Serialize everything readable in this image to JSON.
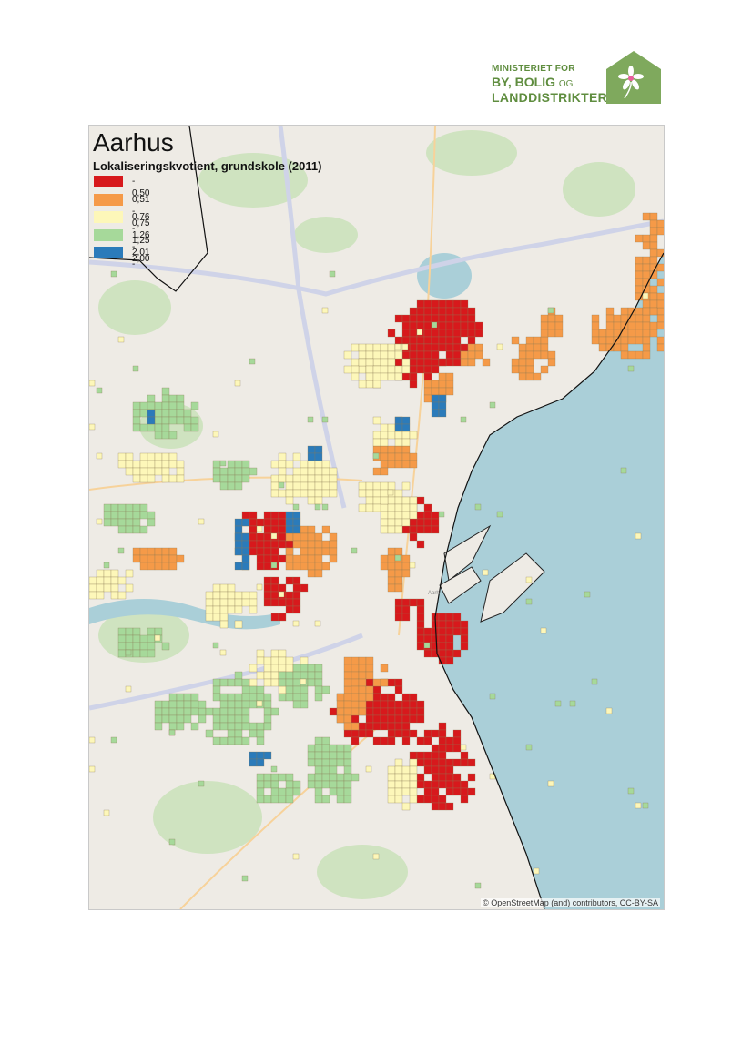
{
  "logo": {
    "line1": "MINISTERIET FOR",
    "line2": "BY, BOLIG",
    "line2_small": "OG",
    "line3": "LANDDISTRIKTER",
    "color": "#7fa95d"
  },
  "map": {
    "title": "Aarhus",
    "subtitle": "Lokaliseringskvotient, grundskole (2011)",
    "legend": [
      {
        "label": " - 0,50",
        "color": "#d7191c"
      },
      {
        "label": "0,51 - 0,75",
        "color": "#f59a48"
      },
      {
        "label": "0,76 - 1,25",
        "color": "#fdf7b9"
      },
      {
        "label": "1,26 - 2,00",
        "color": "#a6d99a"
      },
      {
        "label": "2,01 -",
        "color": "#2b7bba"
      }
    ],
    "place_label": "Aarh",
    "credit": "© OpenStreetMap (and) contributors, CC-BY-SA",
    "sea_color": "#aacfd8",
    "land_color": "#eeebe5"
  }
}
